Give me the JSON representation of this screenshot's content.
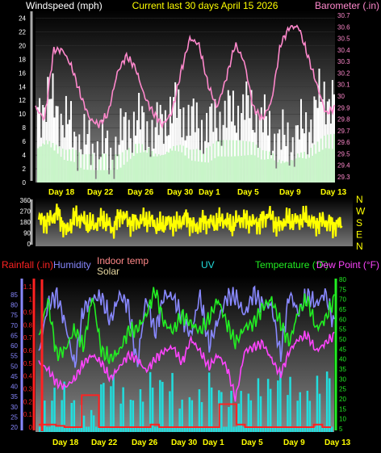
{
  "title": "Current last 30 days April 15 2026",
  "colors": {
    "background": "#000000",
    "title": "#ffff00",
    "windspeed": "#ffffff",
    "gust": "#c8f5c8",
    "barometer": "#ff88cc",
    "direction": "#ffff00",
    "rain": "#ff2222",
    "humidity": "#8888ff",
    "indoor": "#ff8888",
    "solar": "#e8d8a0",
    "uv": "#22dddd",
    "temperature": "#22ee22",
    "dewpoint": "#ff44ff"
  },
  "chart_data": [
    {
      "type": "area",
      "title": "Current last 30 days April 15 2026",
      "ylabel": "Windspeed (mph)",
      "y2label": "Barometer (.in)",
      "ylim": [
        0,
        25
      ],
      "y_ticks": [
        "0",
        "2",
        "4",
        "6",
        "8",
        "10",
        "12",
        "14",
        "16",
        "18",
        "20",
        "22",
        "24"
      ],
      "y2lim": [
        29.25,
        30.75
      ],
      "y2_ticks": [
        "29.3",
        "29.4",
        "29.5",
        "29.6",
        "29.7",
        "29.8",
        "29.9",
        "30",
        "30.1",
        "30.2",
        "30.3",
        "30.4",
        "30.5",
        "30.6",
        "30.7"
      ],
      "x_ticks": [
        "Day 18",
        "Day 22",
        "Day 26",
        "Day 30",
        "Day 1",
        "Day 5",
        "Day 9",
        "Day 13"
      ],
      "series": [
        {
          "name": "Barometer",
          "axis": "right",
          "values": [
            29.9,
            29.8,
            30.4,
            30.4,
            30.25,
            30.0,
            29.8,
            29.75,
            29.85,
            30.2,
            30.35,
            30.25,
            30.0,
            29.85,
            29.75,
            29.85,
            30.2,
            30.5,
            30.45,
            30.1,
            29.9,
            30.15,
            30.45,
            30.3,
            29.9,
            29.8,
            29.95,
            30.45,
            30.6,
            30.6,
            30.35,
            30.1,
            29.85,
            29.9
          ]
        },
        {
          "name": "Windspeed",
          "axis": "left",
          "values": [
            11,
            12,
            11,
            9,
            7,
            6,
            5,
            5,
            4,
            6,
            8,
            9,
            8,
            7,
            9,
            11,
            10,
            9,
            8,
            8,
            9,
            10,
            10,
            11,
            10,
            9,
            7,
            6,
            6,
            7,
            8,
            11,
            13,
            12
          ]
        },
        {
          "name": "Gust",
          "axis": "left",
          "values": [
            5,
            6,
            5,
            4,
            4,
            3,
            3,
            3,
            3,
            3,
            4,
            5,
            5,
            4,
            4,
            5,
            5,
            4,
            4,
            4,
            5,
            5,
            5,
            5,
            5,
            4,
            4,
            3,
            3,
            4,
            4,
            5,
            6,
            6
          ]
        }
      ]
    },
    {
      "type": "line",
      "y_ticks": [
        "360",
        "270",
        "180",
        "90",
        "0"
      ],
      "ylim": [
        0,
        360
      ],
      "right_labels": [
        "N",
        "W",
        "S",
        "E",
        "N"
      ],
      "series": [
        {
          "name": "Wind direction",
          "values": [
            200,
            180,
            260,
            100,
            230,
            180,
            150,
            210,
            120,
            250,
            170,
            190,
            200,
            140,
            180,
            160,
            220,
            130,
            190,
            170,
            200,
            150,
            210,
            180,
            170,
            250,
            140,
            200,
            180,
            220,
            160,
            190,
            150,
            170
          ]
        }
      ]
    },
    {
      "type": "line",
      "legend": [
        "Rainfall (.in)",
        "Humidity",
        "Indoor temp",
        "Solar",
        "UV",
        "Temperature (°F)",
        "Dew Point (°F)"
      ],
      "y_left_rain_ticks": [
        "0",
        "0.1",
        "0.2",
        "0.3",
        "0.4",
        "0.5",
        "0.6",
        "0.7",
        "0.8",
        "0.9",
        "1",
        "1.1"
      ],
      "y_left_humidity_ticks": [
        "20",
        "25",
        "30",
        "35",
        "40",
        "45",
        "50",
        "55",
        "60",
        "65",
        "70",
        "75",
        "80",
        "85"
      ],
      "y_right_ticks": [
        "5",
        "10",
        "15",
        "20",
        "25",
        "30",
        "35",
        "40",
        "45",
        "50",
        "55",
        "60",
        "65",
        "70",
        "75",
        "80"
      ],
      "rain_lim": [
        0,
        1.15
      ],
      "humidity_lim": [
        18,
        90
      ],
      "temp_lim": [
        3,
        82
      ],
      "series": [
        {
          "name": "Humidity",
          "values": [
            55,
            80,
            85,
            70,
            50,
            78,
            83,
            84,
            72,
            85,
            80,
            50,
            84,
            66,
            85,
            84,
            74,
            65,
            85,
            60,
            72,
            84,
            84,
            75,
            86,
            80,
            80,
            55,
            86,
            76,
            85,
            80,
            86,
            70
          ]
        },
        {
          "name": "Temperature (°F)",
          "values": [
            50,
            70,
            42,
            45,
            55,
            46,
            72,
            44,
            40,
            44,
            54,
            55,
            62,
            75,
            58,
            54,
            62,
            58,
            54,
            60,
            70,
            58,
            48,
            56,
            58,
            66,
            70,
            58,
            48,
            64,
            70,
            55,
            60,
            70
          ]
        },
        {
          "name": "Dew Point (°F)",
          "values": [
            38,
            35,
            28,
            26,
            30,
            38,
            42,
            38,
            30,
            36,
            42,
            40,
            34,
            40,
            44,
            46,
            38,
            50,
            44,
            36,
            42,
            36,
            20,
            44,
            46,
            48,
            40,
            32,
            44,
            50,
            52,
            44,
            48,
            52
          ]
        },
        {
          "name": "Rainfall (.in)",
          "values": [
            0.02,
            0.02,
            0.01,
            0.0,
            0.0,
            0.25,
            0.25,
            0.0,
            0.0,
            0.0,
            0.0,
            0.0,
            0.0,
            0.02,
            0.0,
            0.0,
            0.0,
            0.0,
            0.0,
            0.0,
            0.0,
            0.18,
            0.18,
            0.02,
            0.0,
            0.0,
            0.0,
            0.0,
            0.0,
            0.0,
            0.0,
            0.0,
            0.02,
            0.0
          ]
        },
        {
          "name": "UV",
          "values": [
            4,
            3,
            5,
            6,
            5,
            3,
            2,
            5,
            6,
            5,
            6,
            5,
            6,
            6,
            5,
            6,
            4,
            6,
            5,
            6,
            5,
            3,
            5,
            6,
            6,
            6,
            5,
            6,
            6,
            6,
            6,
            6,
            6,
            6
          ]
        }
      ]
    }
  ]
}
